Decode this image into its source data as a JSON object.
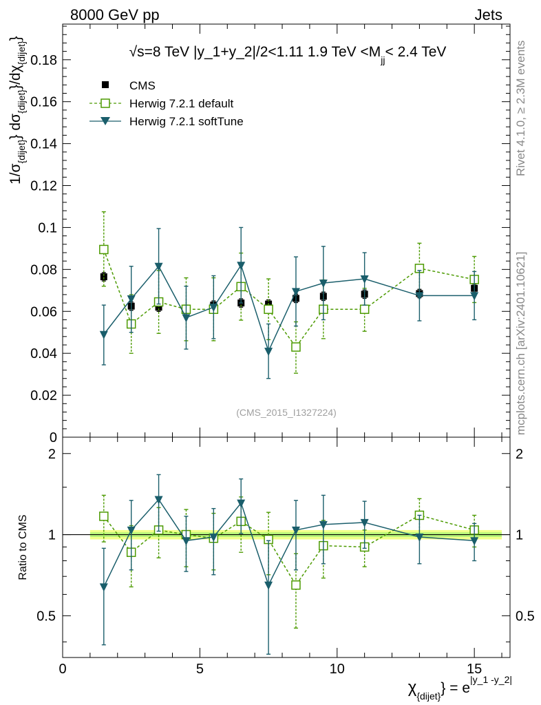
{
  "header": {
    "left": "8000 GeV pp",
    "right": "Jets"
  },
  "side_labels": {
    "rivet": "Rivet 4.1.0, ≥ 2.3M events",
    "mcplots": "mcplots.cern.ch [arXiv:2401.10621]"
  },
  "chart_data": {
    "type": "scatter",
    "title": "√s=8 TeV |y_1+y_2|/2<1.11 1.9 TeV <M_jj< 2.4 TeV",
    "title_parts": {
      "pre": "√s=8 TeV |y_1+y_2|/2<1.11 1.9 TeV <M",
      "sub": "jj",
      "post": "< 2.4 TeV"
    },
    "watermark": "(CMS_2015_I1327224)",
    "xlabel": {
      "chi": "χ",
      "sub": "{dijet}",
      "eq": "} = e",
      "sup": "|y_1 -y_2|"
    },
    "ylabel": {
      "p1": "1/σ",
      "s1": "{dijet}",
      "p2": "} dσ",
      "s2": "{dijet}",
      "p3": "}/dχ",
      "s3": "{dijet}",
      "p4": "}"
    },
    "ratio_ylabel": "Ratio to CMS",
    "xlim": [
      0,
      16.3
    ],
    "ylim": [
      0,
      0.197
    ],
    "ratio_ylim": [
      0.35,
      2.3
    ],
    "x_ticks": [
      0,
      5,
      10,
      15
    ],
    "x_tick_labels": [
      "0",
      "5",
      "10",
      "15"
    ],
    "y_ticks": [
      0,
      0.02,
      0.04,
      0.06,
      0.08,
      0.1,
      0.12,
      0.14,
      0.16,
      0.18
    ],
    "y_tick_labels": [
      "0",
      "0.02",
      "0.04",
      "0.06",
      "0.08",
      "0.1",
      "0.12",
      "0.14",
      "0.16",
      "0.18"
    ],
    "ratio_ticks": [
      0.5,
      1,
      2
    ],
    "ratio_tick_labels": [
      "0.5",
      "1",
      "2"
    ],
    "x": [
      1.5,
      2.5,
      3.5,
      4.5,
      5.5,
      6.5,
      7.5,
      8.5,
      9.5,
      11,
      13,
      15
    ],
    "x_bin_edges": [
      1,
      2,
      3,
      4,
      5,
      6,
      7,
      8,
      9,
      10,
      12,
      14,
      16
    ],
    "ref_band": {
      "inner": 0.02,
      "outer": 0.04
    },
    "series": [
      {
        "name": "CMS",
        "style": "data",
        "color": "#000000",
        "values": [
          0.0765,
          0.0625,
          0.062,
          0.061,
          0.063,
          0.064,
          0.0635,
          0.0662,
          0.0672,
          0.0682,
          0.0685,
          0.071
        ],
        "err_up": [
          0.002,
          0.002,
          0.002,
          0.002,
          0.002,
          0.002,
          0.002,
          0.002,
          0.002,
          0.002,
          0.002,
          0.002
        ],
        "err_down": [
          0.002,
          0.002,
          0.002,
          0.002,
          0.002,
          0.002,
          0.002,
          0.002,
          0.002,
          0.002,
          0.002,
          0.002
        ]
      },
      {
        "name": "Herwig 7.2.1 default",
        "style": "dashed-open-square",
        "color": "#4c9a00",
        "values": [
          0.0895,
          0.054,
          0.0645,
          0.061,
          0.061,
          0.0718,
          0.061,
          0.043,
          0.061,
          0.061,
          0.0805,
          0.0752
        ],
        "err_up": [
          0.018,
          0.014,
          0.015,
          0.015,
          0.015,
          0.016,
          0.0145,
          0.012,
          0.014,
          0.01,
          0.012,
          0.011
        ],
        "err_down": [
          0.0175,
          0.014,
          0.015,
          0.015,
          0.015,
          0.016,
          0.0145,
          0.0125,
          0.014,
          0.0105,
          0.012,
          0.011
        ],
        "ratio": [
          1.17,
          0.86,
          1.04,
          1.0,
          0.97,
          1.12,
          0.96,
          0.65,
          0.91,
          0.9,
          1.18,
          1.04
        ],
        "ratio_err": [
          0.23,
          0.22,
          0.22,
          0.24,
          0.23,
          0.26,
          0.25,
          0.2,
          0.22,
          0.14,
          0.18,
          0.14
        ]
      },
      {
        "name": "Herwig 7.2.1 softTune",
        "style": "solid-filled-triangle",
        "color": "#1a5e6b",
        "values": [
          0.049,
          0.066,
          0.0815,
          0.057,
          0.062,
          0.082,
          0.041,
          0.0695,
          0.0735,
          0.0755,
          0.0675,
          0.0675
        ],
        "err_up": [
          0.014,
          0.0155,
          0.018,
          0.015,
          0.015,
          0.018,
          0.013,
          0.0165,
          0.0175,
          0.0125,
          0.012,
          0.0115
        ],
        "err_down": [
          0.0145,
          0.016,
          0.018,
          0.015,
          0.015,
          0.018,
          0.013,
          0.0165,
          0.0175,
          0.0125,
          0.012,
          0.0115
        ],
        "ratio": [
          0.64,
          1.04,
          1.35,
          0.95,
          0.98,
          1.31,
          0.65,
          1.04,
          1.09,
          1.11,
          0.98,
          0.95
        ],
        "ratio_err": [
          0.25,
          0.3,
          0.32,
          0.22,
          0.27,
          0.3,
          0.3,
          0.3,
          0.31,
          0.22,
          0.2,
          0.15
        ]
      }
    ]
  }
}
